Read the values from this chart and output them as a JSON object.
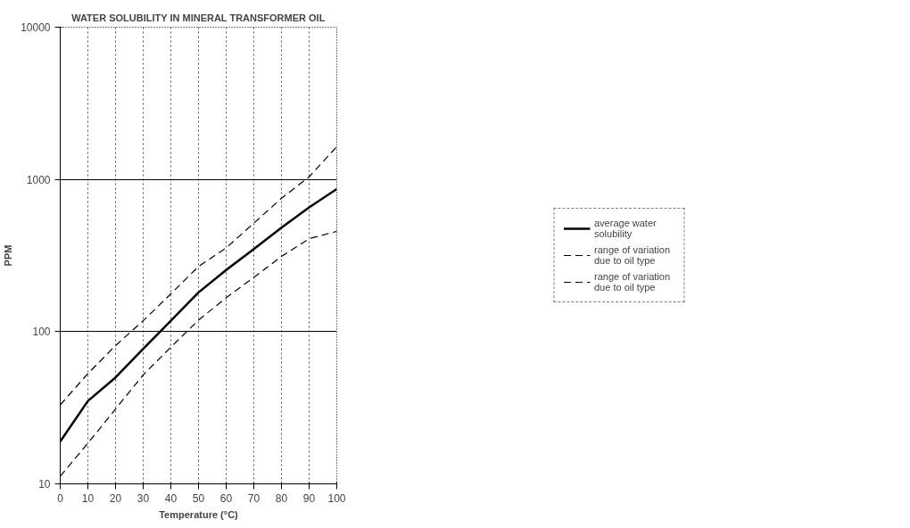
{
  "chart_data": {
    "type": "line",
    "title": "WATER SOLUBILITY IN MINERAL TRANSFORMER OIL",
    "xlabel": "Temperature (°C)",
    "ylabel": "PPM",
    "x": [
      0,
      10,
      20,
      30,
      40,
      50,
      60,
      70,
      80,
      90,
      100
    ],
    "series": [
      {
        "name": "average water solubility",
        "color": "#000000",
        "line_style": "solid",
        "values": [
          19,
          35,
          50,
          77,
          118,
          181,
          254,
          349,
          482,
          655,
          865
        ]
      },
      {
        "name": "range of variation due to oil type",
        "color": "#000000",
        "line_style": "dashed",
        "values": [
          33,
          53,
          81,
          118,
          177,
          268,
          355,
          516,
          752,
          1040,
          1642
        ]
      },
      {
        "name": "range of variation due to oil type",
        "color": "#000000",
        "line_style": "dashed",
        "values": [
          11.2,
          18.5,
          31,
          52,
          79,
          119,
          167,
          227,
          312,
          408,
          456
        ]
      }
    ],
    "log": "y",
    "xlim": [
      0,
      100
    ],
    "ylim": [
      10,
      10000
    ],
    "xticks": [
      0,
      10,
      20,
      30,
      40,
      50,
      60,
      70,
      80,
      90,
      100
    ],
    "yticks": [
      10,
      100,
      1000,
      10000
    ],
    "grid": true,
    "legend": "right",
    "marker": "none"
  }
}
